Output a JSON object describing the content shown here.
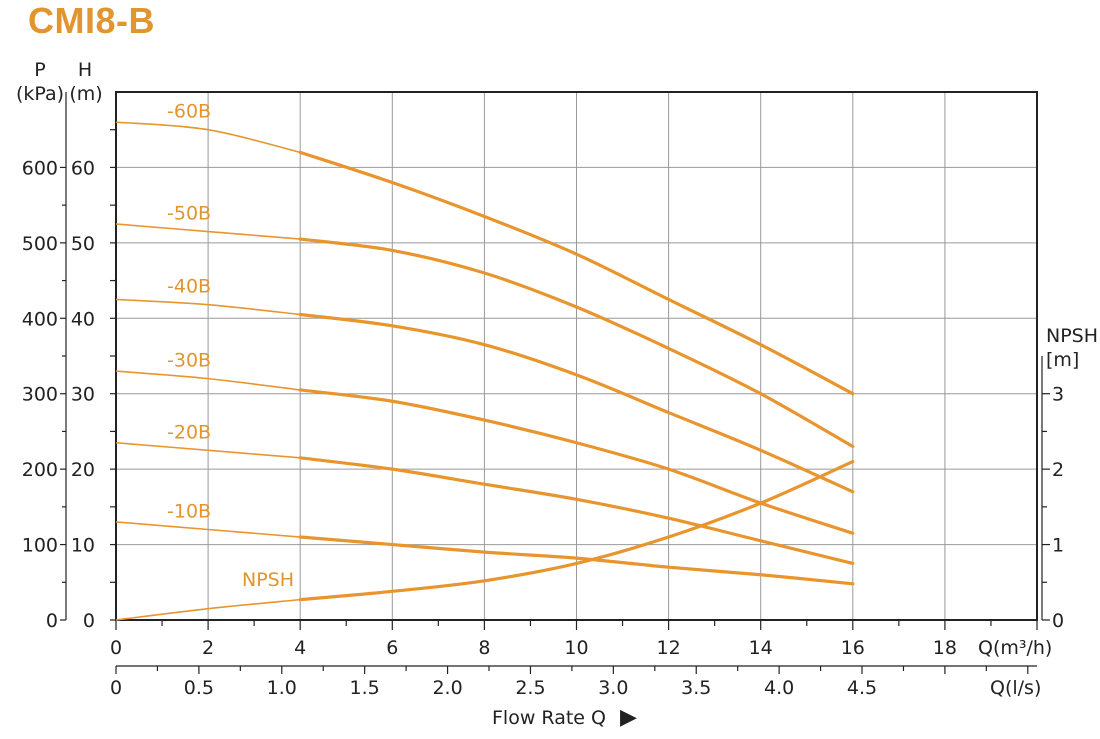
{
  "title": "CMI8-B",
  "colors": {
    "curve": "#E8952E",
    "label": "#E0952E",
    "grid": "#9a9a9a",
    "axis": "#222222"
  },
  "axes": {
    "p_label_1": "P",
    "p_label_2": "(kPa)",
    "h_label_1": "H",
    "h_label_2": "(m)",
    "npsh_label_1": "NPSH",
    "npsh_label_2": "[m]",
    "q1_unit": "Q(m³/h)",
    "q2_unit": "Q(l/s)",
    "flow_label": "Flow Rate Q",
    "flow_arrow": "▶"
  },
  "chart_data": {
    "type": "line",
    "title": "CMI8-B",
    "xlabel": "Flow Rate Q",
    "x_unit": "Q(m³/h)",
    "xlim": [
      0,
      20
    ],
    "x_ticks": [
      0,
      2,
      4,
      6,
      8,
      10,
      12,
      14,
      16,
      18
    ],
    "x2_unit": "Q(l/s)",
    "x2_ticks": [
      "0",
      "0.5",
      "1.0",
      "1.5",
      "2.0",
      "2.5",
      "3.0",
      "3.5",
      "4.0",
      "4.5"
    ],
    "x2_values": [
      0,
      0.5,
      1.0,
      1.5,
      2.0,
      2.5,
      3.0,
      3.5,
      4.0,
      4.5
    ],
    "ylim_h": [
      0,
      70
    ],
    "h_ticks": [
      0,
      10,
      20,
      30,
      40,
      50,
      60
    ],
    "p_ticks": [
      0,
      100,
      200,
      300,
      400,
      500,
      600
    ],
    "npsh_ticks": [
      0,
      1,
      2,
      3
    ],
    "npsh_minor_ticks": [
      0.5,
      1.5,
      2.5
    ],
    "grid": true,
    "series": [
      {
        "name": "-60B",
        "x": [
          0,
          2,
          4,
          6,
          8,
          10,
          12,
          14,
          16
        ],
        "y": [
          66,
          65,
          62,
          58,
          53.5,
          48.5,
          42.5,
          36.5,
          30
        ]
      },
      {
        "name": "-50B",
        "x": [
          0,
          2,
          4,
          6,
          8,
          10,
          12,
          14,
          16
        ],
        "y": [
          52.5,
          51.5,
          50.5,
          49,
          46,
          41.5,
          36,
          30,
          23
        ]
      },
      {
        "name": "-40B",
        "x": [
          0,
          2,
          4,
          6,
          8,
          10,
          12,
          14,
          16
        ],
        "y": [
          42.5,
          41.8,
          40.5,
          39,
          36.5,
          32.5,
          27.5,
          22.5,
          17
        ]
      },
      {
        "name": "-30B",
        "x": [
          0,
          2,
          4,
          6,
          8,
          10,
          12,
          14,
          16
        ],
        "y": [
          33,
          32,
          30.5,
          29,
          26.5,
          23.5,
          20,
          15.5,
          11.5
        ]
      },
      {
        "name": "-20B",
        "x": [
          0,
          2,
          4,
          6,
          8,
          10,
          12,
          14,
          16
        ],
        "y": [
          23.5,
          22.5,
          21.5,
          20,
          18,
          16,
          13.5,
          10.5,
          7.5
        ]
      },
      {
        "name": "-10B",
        "x": [
          0,
          2,
          4,
          6,
          8,
          10,
          12,
          14,
          16
        ],
        "y": [
          13,
          12,
          11,
          10,
          9,
          8.2,
          7,
          6,
          4.8
        ]
      },
      {
        "name": "NPSH",
        "axis": "npsh",
        "x": [
          0,
          2,
          4,
          6,
          8,
          10,
          12,
          14,
          16
        ],
        "y": [
          0,
          0.15,
          0.27,
          0.38,
          0.52,
          0.75,
          1.1,
          1.55,
          2.1
        ]
      }
    ]
  }
}
